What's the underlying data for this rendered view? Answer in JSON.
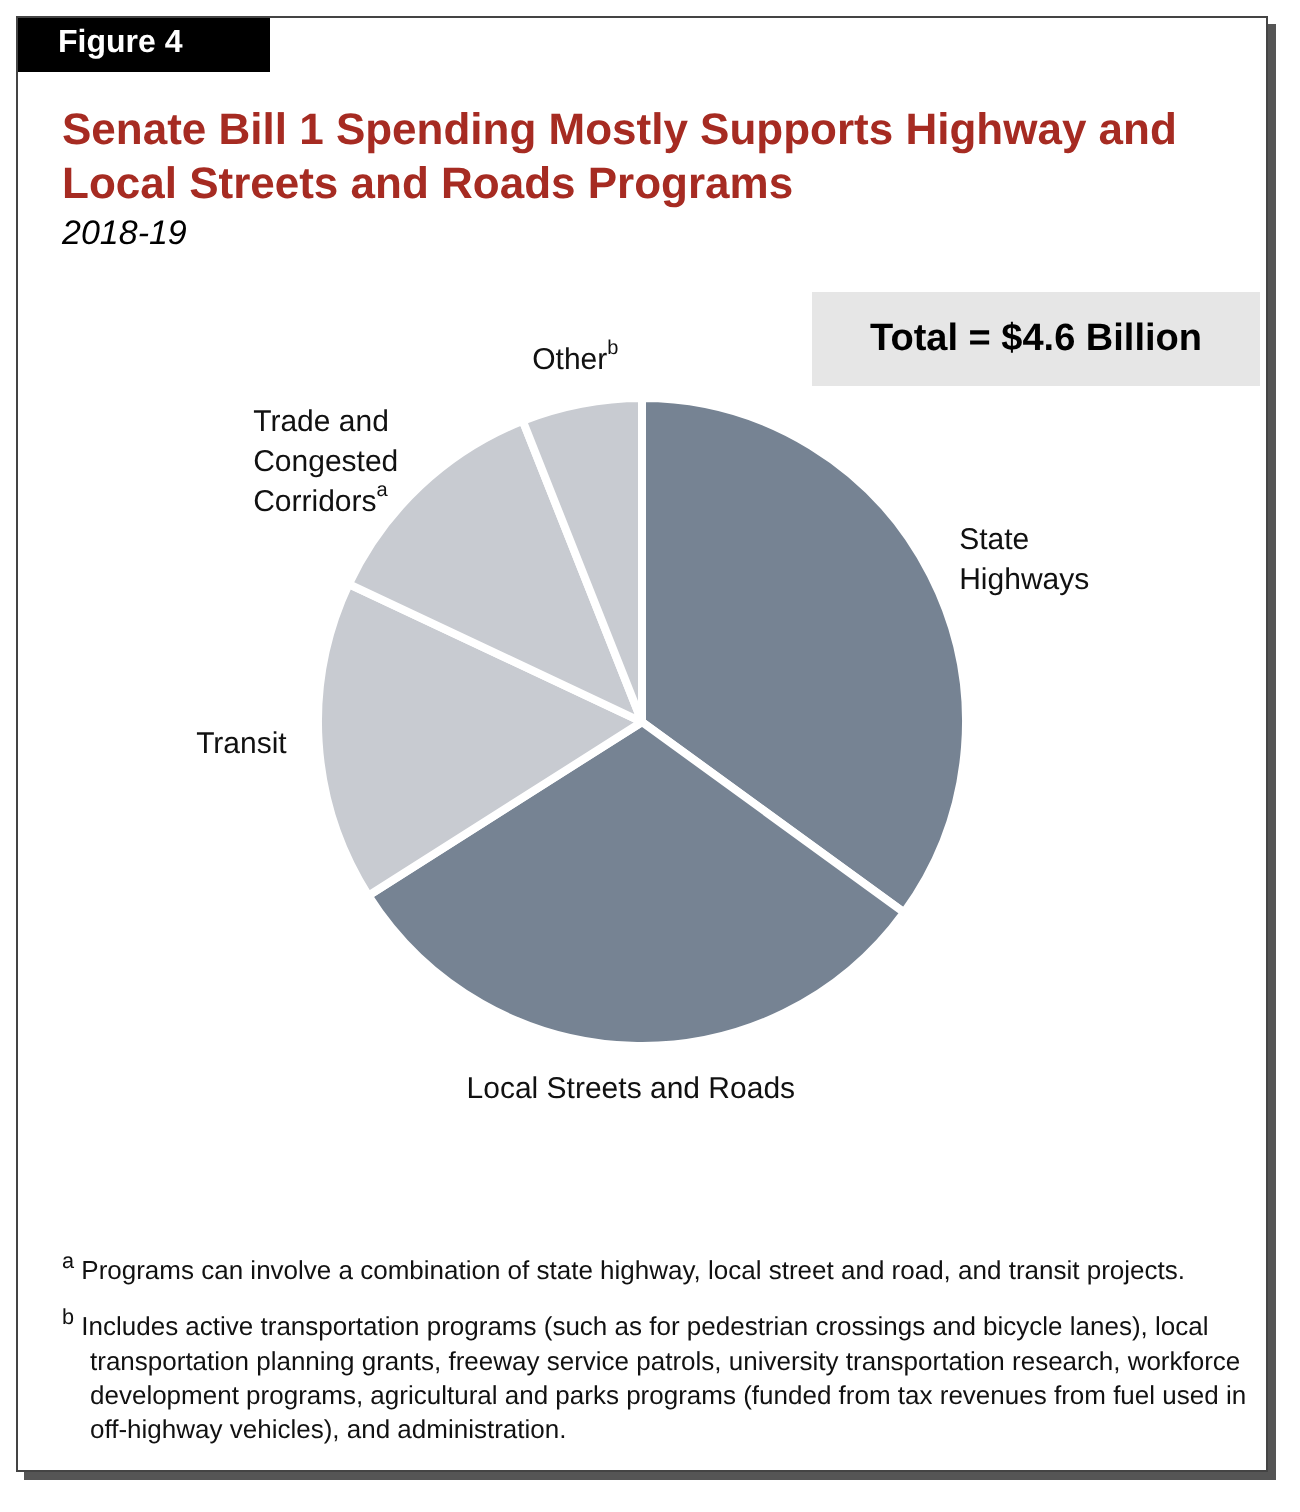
{
  "chart_data": {
    "type": "pie",
    "title": "Senate Bill 1 Spending Mostly Supports Highway and Local Streets and Roads Programs",
    "subtitle": "2018-19",
    "categories": [
      "State Highways",
      "Local Streets and Roads",
      "Transit",
      "Trade and Congested Corridors$^{a}$",
      "Other$^{b}$"
    ],
    "values": [
      35,
      31,
      16,
      12,
      6
    ],
    "colors": [
      "#768393",
      "#768393",
      "#c8cbd1",
      "#c8cbd1",
      "#c8cbd1"
    ],
    "annotations": [
      "Figure 4",
      "Total = $4.6 Billion",
      "$^{a}$ Programs can involve a combination of state highway, local street and road, and transit projects.",
      "$^{b}$ Includes active transportation programs (such as for pedestrian crossings and bicycle lanes), local transportation planning grants, freeway service patrols, university transportation research, workforce development programs, agricultural and parks programs (funded from tax revenues from fuel used in off-highway vehicles), and administration."
    ],
    "legend": false
  }
}
